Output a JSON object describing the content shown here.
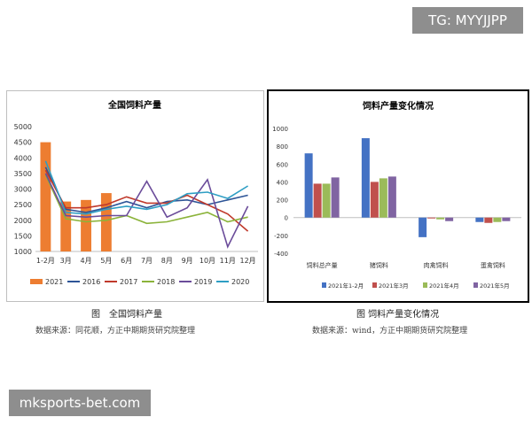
{
  "watermarks": {
    "top_right": "TG: MYYJJPP",
    "bottom_left": "mksports-bet.com"
  },
  "captions": {
    "left": "图　全国饲料产量",
    "left_source": "数据来源：同花顺，方正中期期货研究院整理",
    "right": "图 饲料产量变化情况",
    "right_source": "数据来源：wind，方正中期期货研究院整理"
  },
  "chart_data": [
    {
      "type": "line",
      "title": "全国饲料产量",
      "categories": [
        "1-2月",
        "3月",
        "4月",
        "5月",
        "6月",
        "7月",
        "8月",
        "9月",
        "10月",
        "11月",
        "12月"
      ],
      "ylim": [
        1000,
        5000
      ],
      "yticks": [
        1000,
        1500,
        2000,
        2500,
        3000,
        3500,
        4000,
        4500,
        5000
      ],
      "grid": false,
      "legend_position": "bottom",
      "bar_series": {
        "name": "2021",
        "color": "#ed7d31",
        "values": [
          4500,
          2600,
          2650,
          2870
        ]
      },
      "series": [
        {
          "name": "2016",
          "color": "#2e5597",
          "values": [
            3700,
            2350,
            2250,
            2400,
            2600,
            2400,
            2600,
            2650,
            2500,
            2650,
            2800
          ]
        },
        {
          "name": "2017",
          "color": "#c0392b",
          "values": [
            3600,
            2400,
            2400,
            2500,
            2750,
            2550,
            2550,
            2800,
            2500,
            2200,
            1650
          ]
        },
        {
          "name": "2018",
          "color": "#8bb33a",
          "values": [
            3450,
            2050,
            1950,
            2000,
            2150,
            1900,
            1950,
            2100,
            2250,
            1950,
            2100
          ]
        },
        {
          "name": "2019",
          "color": "#6b4c9a",
          "values": [
            3500,
            2150,
            2100,
            2150,
            2150,
            3250,
            2100,
            2400,
            3300,
            1150,
            2450
          ]
        },
        {
          "name": "2020",
          "color": "#2e9ec4",
          "values": [
            3900,
            2250,
            2200,
            2350,
            2450,
            2350,
            2500,
            2850,
            2900,
            2700,
            3100
          ]
        }
      ]
    },
    {
      "type": "bar",
      "title": "饲料产量变化情况",
      "categories": [
        "饲料总产量",
        "猪饲料",
        "肉禽饲料",
        "蛋禽饲料"
      ],
      "ylim": [
        -400,
        1000
      ],
      "yticks": [
        -400,
        -200,
        0,
        200,
        400,
        600,
        800,
        1000
      ],
      "grid": false,
      "legend_position": "bottom",
      "series": [
        {
          "name": "2021年1-2月",
          "color": "#4472c4",
          "values": [
            720,
            890,
            -220,
            -50
          ]
        },
        {
          "name": "2021年3月",
          "color": "#c0504d",
          "values": [
            380,
            400,
            -10,
            -60
          ]
        },
        {
          "name": "2021年4月",
          "color": "#9bbb59",
          "values": [
            380,
            440,
            -20,
            -50
          ]
        },
        {
          "name": "2021年5月",
          "color": "#8064a2",
          "values": [
            450,
            460,
            -40,
            -40
          ]
        }
      ]
    }
  ]
}
